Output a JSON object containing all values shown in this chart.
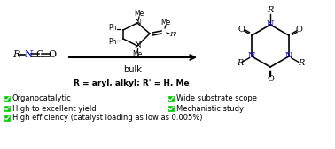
{
  "bg_color": "#ffffff",
  "bullet_color": "#00cc00",
  "text_color": "#000000",
  "blue_color": "#0000cd",
  "bullet_items_left": [
    "Organocatalytic",
    "High to excellent yield",
    "High efficiency (catalyst loading as low as 0.005%)"
  ],
  "bullet_items_right": [
    "Wide substrate scope",
    "Mechanistic study"
  ],
  "r_label": "R = aryl, alkyl; R' = H, Me",
  "arrow_label": "bulk",
  "figsize": [
    3.78,
    1.69
  ],
  "dpi": 100
}
